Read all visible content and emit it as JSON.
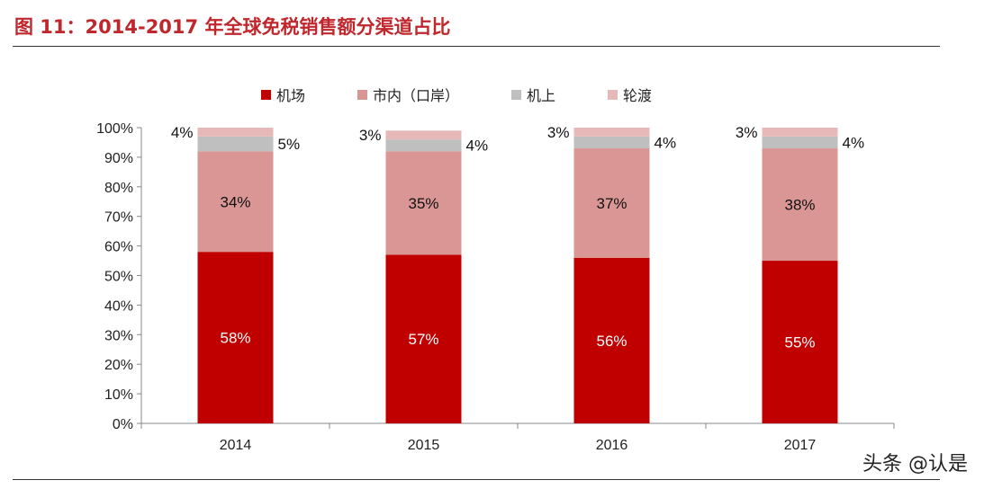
{
  "title": "图 11：2014-2017 年全球免税销售额分渠道占比",
  "watermark": "头条 @认是",
  "chart_data": {
    "type": "bar",
    "stacked": true,
    "categories": [
      "2014",
      "2015",
      "2016",
      "2017"
    ],
    "series": [
      {
        "name": "机场",
        "values": [
          58,
          57,
          56,
          55
        ],
        "color": "#C00000"
      },
      {
        "name": "市内（口岸）",
        "values": [
          34,
          35,
          37,
          38
        ],
        "color": "#D99694"
      },
      {
        "name": "机上",
        "values": [
          5,
          4,
          4,
          4
        ],
        "color": "#BFBFBF"
      },
      {
        "name": "轮渡",
        "values": [
          4,
          3,
          3,
          3
        ],
        "color": "#E6B9B8"
      }
    ],
    "ylim": [
      0,
      100
    ],
    "yticks": [
      "0%",
      "10%",
      "20%",
      "30%",
      "40%",
      "50%",
      "60%",
      "70%",
      "80%",
      "90%",
      "100%"
    ],
    "legend": "top"
  }
}
